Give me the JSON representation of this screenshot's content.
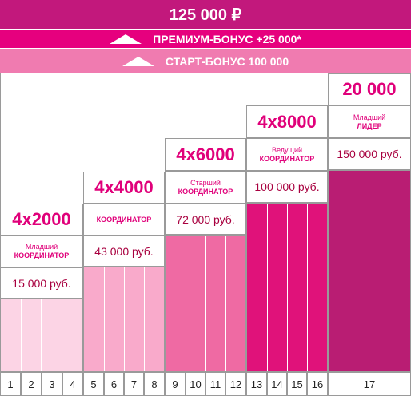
{
  "top": {
    "total": "125 000 ₽"
  },
  "premium": {
    "label": "ПРЕМИУМ-БОНУС +25 000*"
  },
  "start": {
    "label": "СТАРТ-БОНУС 100 000"
  },
  "colors": {
    "top": "#c2187c",
    "premium": "#e6007e",
    "start": "#f07bb0",
    "c1": "#fcd4e5",
    "c2": "#f9aacb",
    "c3": "#ef6aa3",
    "c4": "#e0127a",
    "c5": "#b91d73"
  },
  "levels": [
    {
      "head": "4x2000",
      "role_line1": "Младший",
      "role_line2": "КООРДИНАТОР",
      "sum": "15 000 руб."
    },
    {
      "head": "4x4000",
      "role_line1": "",
      "role_line2": "КООРДИНАТОР",
      "sum": "43 000 руб."
    },
    {
      "head": "4x6000",
      "role_line1": "Старший",
      "role_line2": "КООРДИНАТОР",
      "sum": "72 000 руб."
    },
    {
      "head": "4x8000",
      "role_line1": "Ведущий",
      "role_line2": "КООРДИНАТОР",
      "sum": "100 000 руб."
    },
    {
      "head": "20 000",
      "role_line1": "Младший",
      "role_line2": "ЛИДЕР",
      "sum": "150 000 руб."
    }
  ],
  "steps": [
    "1",
    "2",
    "3",
    "4",
    "5",
    "6",
    "7",
    "8",
    "9",
    "10",
    "11",
    "12",
    "13",
    "14",
    "15",
    "16",
    "17"
  ]
}
